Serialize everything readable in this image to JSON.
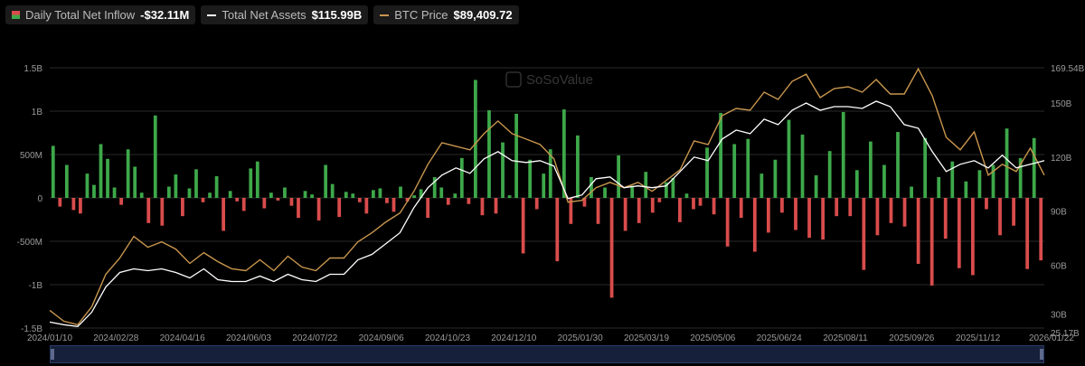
{
  "legend": [
    {
      "label": "Daily Total Net Inflow",
      "value": "-$32.11M"
    },
    {
      "label": "Total Net Assets",
      "value": "$115.99B"
    },
    {
      "label": "BTC Price",
      "value": "$89,409.72"
    }
  ],
  "watermark": "SoSoValue",
  "colors": {
    "inflow": "#3ea84a",
    "outflow": "#d94c4c",
    "assets": "#ffffff",
    "btc": "#c8964e",
    "grid": "#2a2a2a"
  },
  "chart_data": {
    "type": "bar",
    "title": "",
    "left_axis": {
      "ticks": [
        "1.5B",
        "1B",
        "500M",
        "0",
        "-500M",
        "-1B",
        "-1.5B"
      ],
      "range": [
        -1500,
        1500
      ],
      "unit": "$M"
    },
    "right_axis": {
      "ticks": [
        "169.54B",
        "150B",
        "120B",
        "90B",
        "60B",
        "30B",
        "25.17B"
      ],
      "range": [
        25.17,
        169.54
      ],
      "unit": "$B"
    },
    "x_ticks": [
      "2024/01/10",
      "2024/02/28",
      "2024/04/16",
      "2024/06/03",
      "2024/07/22",
      "2024/09/06",
      "2024/10/23",
      "2024/12/10",
      "2025/01/30",
      "2025/03/19",
      "2025/05/06",
      "2025/06/24",
      "2025/08/11",
      "2025/09/26",
      "2025/11/12",
      "2026/01/22"
    ],
    "series": [
      {
        "name": "Total Net Assets",
        "type": "line",
        "unit": "$B",
        "values": [
          28.5,
          27,
          26,
          34,
          48,
          56,
          58,
          57,
          58,
          56,
          53,
          58,
          52,
          51,
          51,
          54,
          51,
          55,
          52,
          51,
          55,
          55,
          63,
          66,
          72,
          78,
          92,
          103,
          110,
          114,
          111,
          119,
          123,
          118,
          117,
          118,
          115,
          97,
          99,
          108,
          109,
          103,
          104,
          103,
          104,
          112,
          120,
          118,
          130,
          135,
          133,
          141,
          138,
          146,
          150,
          146,
          148,
          148,
          147,
          151,
          148,
          138,
          136,
          123,
          112,
          116,
          118,
          114,
          121,
          114,
          116,
          118
        ]
      },
      {
        "name": "BTC Price",
        "type": "line",
        "unit": "$B",
        "values": [
          35,
          29,
          27,
          37,
          55,
          64,
          76,
          70,
          73,
          69,
          61,
          67,
          62,
          58,
          57,
          63,
          57,
          65,
          59,
          57,
          64,
          64,
          73,
          78,
          84,
          89,
          101,
          116,
          128,
          126,
          124,
          133,
          140,
          133,
          130,
          127,
          119,
          95,
          96,
          103,
          106,
          103,
          106,
          101,
          107,
          113,
          129,
          127,
          143,
          147,
          146,
          156,
          152,
          162,
          166,
          153,
          158,
          159,
          156,
          163,
          155,
          155,
          169,
          154,
          131,
          124,
          134,
          110,
          116,
          112,
          125,
          110
        ]
      },
      {
        "name": "Daily Total Net Inflow",
        "type": "bar",
        "unit": "$M",
        "values": [
          600,
          -100,
          380,
          -140,
          -180,
          280,
          150,
          620,
          450,
          120,
          -80,
          560,
          360,
          60,
          -290,
          950,
          -320,
          130,
          270,
          -210,
          110,
          330,
          -50,
          60,
          250,
          -380,
          80,
          -40,
          -150,
          340,
          420,
          -120,
          60,
          -30,
          120,
          -90,
          -230,
          80,
          40,
          -260,
          380,
          160,
          -220,
          70,
          50,
          -50,
          -180,
          90,
          110,
          -60,
          -160,
          130,
          -40,
          30,
          100,
          -230,
          240,
          120,
          -80,
          50,
          460,
          -70,
          1360,
          -200,
          1010,
          -180,
          640,
          30,
          970,
          -640,
          440,
          -130,
          280,
          560,
          -730,
          1020,
          -300,
          720,
          -100,
          240,
          -300,
          120,
          -1150,
          490,
          -380,
          140,
          -290,
          300,
          -170,
          -50,
          180,
          230,
          -280,
          50,
          -130,
          -90,
          580,
          -190,
          980,
          -560,
          620,
          -230,
          680,
          -620,
          280,
          -400,
          440,
          -170,
          900,
          -370,
          730,
          -460,
          260,
          -480,
          540,
          -210,
          990,
          -210,
          320,
          -830,
          650,
          -430,
          380,
          -290,
          760,
          -330,
          130,
          -760,
          690,
          -1010,
          240,
          -470,
          420,
          -810,
          190,
          -890,
          320,
          -130,
          380,
          -430,
          800,
          -320,
          460,
          -820,
          690,
          -720
        ]
      }
    ],
    "grid": true,
    "legend_position": "top-left"
  }
}
